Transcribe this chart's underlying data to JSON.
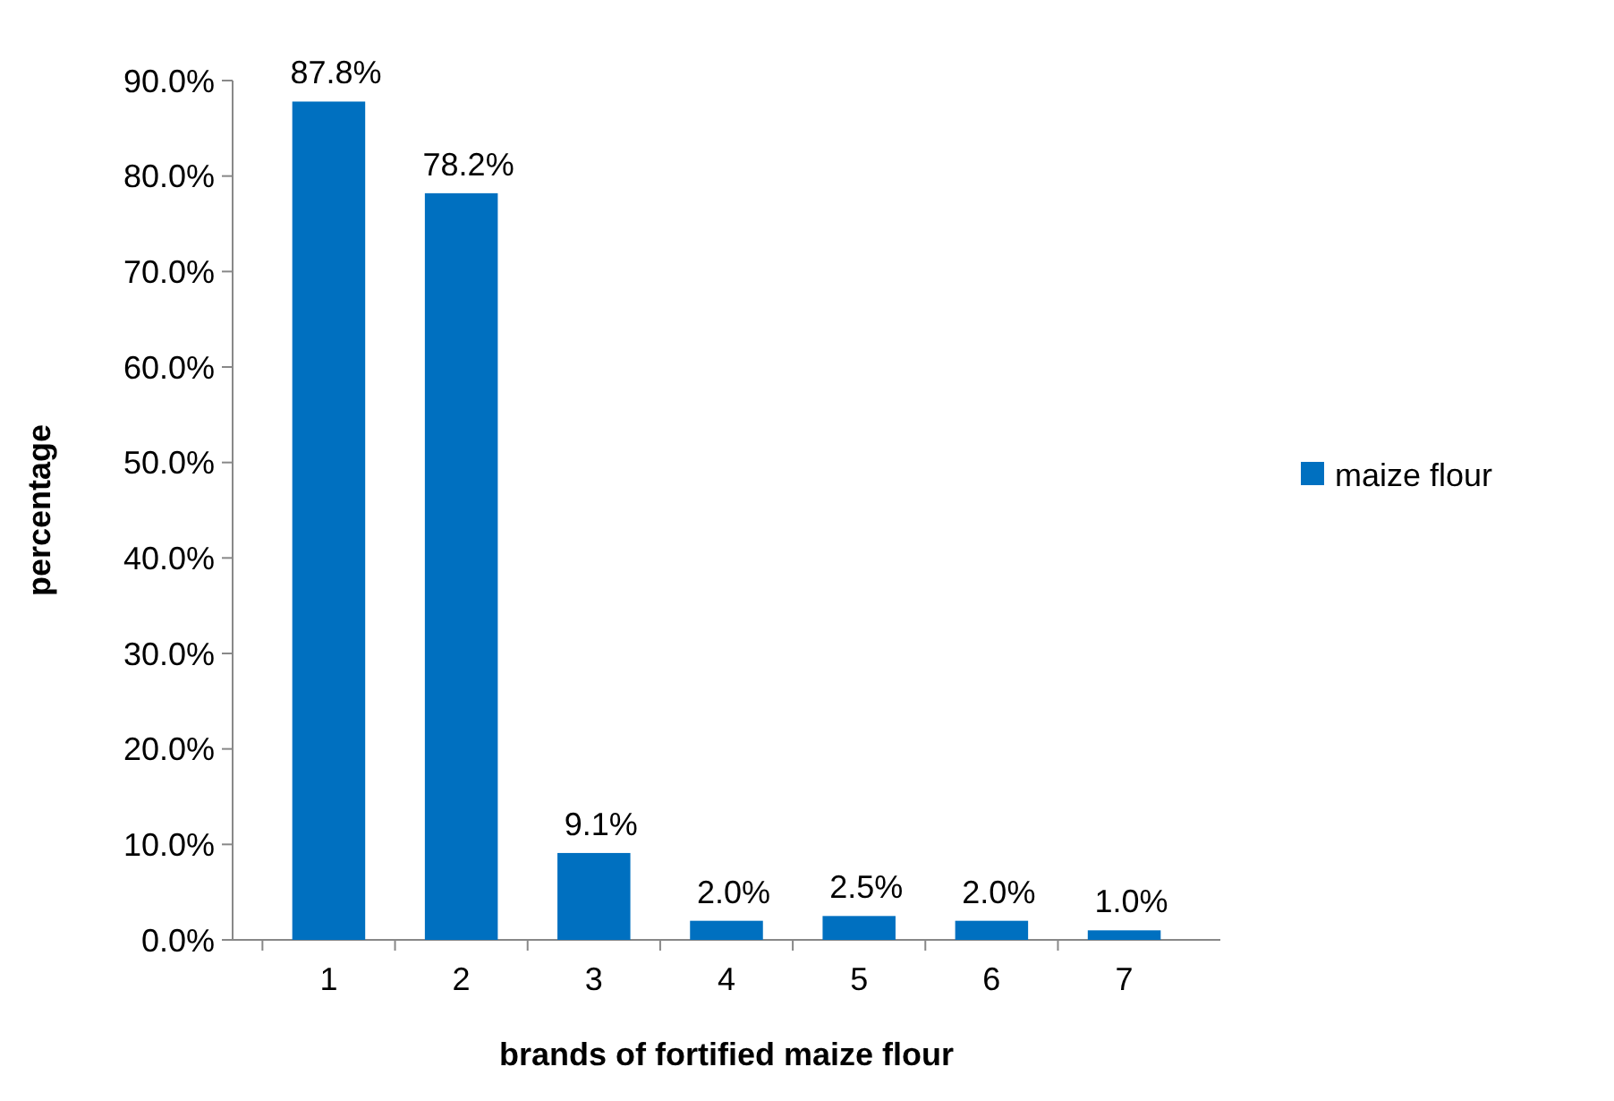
{
  "chart_data": {
    "type": "bar",
    "xlabel": "brands of fortified maize flour",
    "ylabel": "percentage",
    "categories": [
      "1",
      "2",
      "3",
      "4",
      "5",
      "6",
      "7"
    ],
    "series": [
      {
        "name": "maize flour",
        "color": "#0070c0",
        "values": [
          87.8,
          78.2,
          9.1,
          2.0,
          2.5,
          2.0,
          1.0
        ],
        "value_labels": [
          "87.8%",
          "78.2%",
          "9.1%",
          "2.0%",
          "2.5%",
          "2.0%",
          "1.0%"
        ]
      }
    ],
    "ylim": [
      0,
      90
    ],
    "yticks": [
      {
        "value": 0,
        "label": "0.0%"
      },
      {
        "value": 10,
        "label": "10.0%"
      },
      {
        "value": 20,
        "label": "20.0%"
      },
      {
        "value": 30,
        "label": "30.0%"
      },
      {
        "value": 40,
        "label": "40.0%"
      },
      {
        "value": 50,
        "label": "50.0%"
      },
      {
        "value": 60,
        "label": "60.0%"
      },
      {
        "value": 70,
        "label": "70.0%"
      },
      {
        "value": 80,
        "label": "80.0%"
      },
      {
        "value": 90,
        "label": "90.0%"
      }
    ],
    "grid": false,
    "legend": "right"
  }
}
